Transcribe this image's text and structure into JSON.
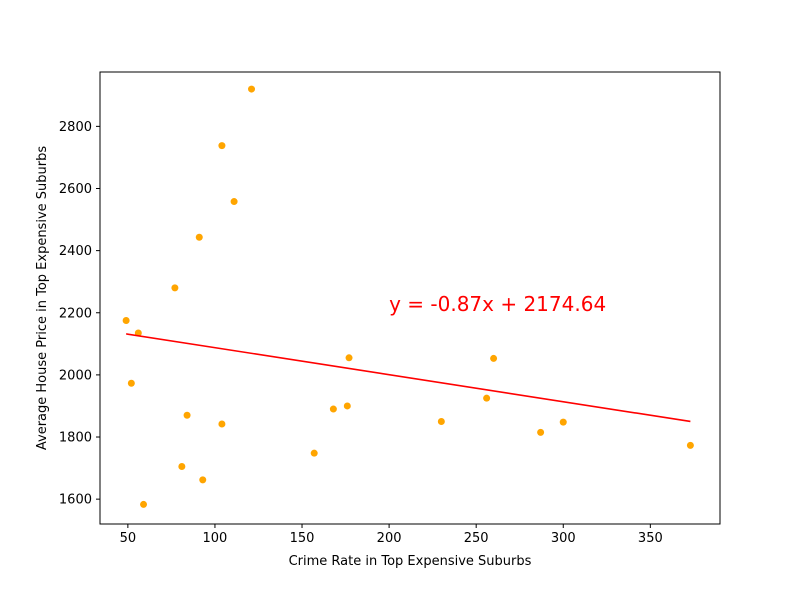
{
  "chart_data": {
    "type": "scatter",
    "xlabel": "Crime Rate in Top Expensive Suburbs",
    "ylabel": "Average House Price in Top Expensive Suburbs",
    "xlim": [
      34,
      390
    ],
    "ylim": [
      1520,
      2975
    ],
    "xticks": [
      "50",
      "100",
      "150",
      "200",
      "250",
      "300",
      "350"
    ],
    "yticks": [
      "1600",
      "1800",
      "2000",
      "2200",
      "2400",
      "2600",
      "2800"
    ],
    "grid": false,
    "points": {
      "color": "#FFA500",
      "x": [
        49,
        52,
        56,
        59,
        77,
        81,
        84,
        91,
        93,
        104,
        104,
        111,
        121,
        157,
        168,
        176,
        177,
        230,
        256,
        260,
        287,
        300,
        373
      ],
      "y": [
        2175,
        1973,
        2135,
        1583,
        2280,
        1705,
        1870,
        2443,
        1662,
        2738,
        1842,
        2558,
        2920,
        1748,
        1890,
        1900,
        2055,
        1850,
        1925,
        2053,
        1815,
        1848,
        1773
      ]
    },
    "regression": {
      "color": "#FF0000",
      "slope": -0.87,
      "intercept": 2174.64,
      "x_range": [
        49,
        373
      ],
      "equation": "y = -0.87x + 2174.64",
      "label_position": [
        200,
        2205
      ]
    }
  }
}
